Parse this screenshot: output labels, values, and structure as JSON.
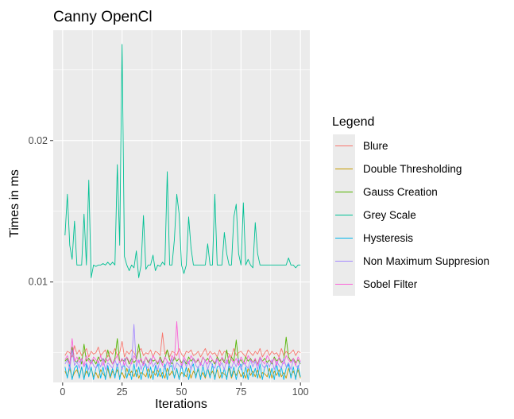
{
  "chart_data": {
    "type": "line",
    "title": "Canny OpenCl",
    "xlabel": "Iterations",
    "ylabel": "Times in ms",
    "xlim": [
      -3.95,
      103.95
    ],
    "ylim": [
      0.0029,
      0.0278
    ],
    "x_ticks": [
      0,
      25,
      50,
      75,
      100
    ],
    "y_ticks": [
      0.01,
      0.02
    ],
    "y_tick_labels": [
      "0.01",
      "0.02"
    ],
    "grid": true,
    "legend": {
      "title": "Legend",
      "position": "right"
    },
    "series": [
      {
        "name": "Blure",
        "color": "#F8766D",
        "values": [
          0.0048,
          0.0051,
          0.005,
          0.0047,
          0.0055,
          0.0049,
          0.0052,
          0.0048,
          0.005,
          0.0053,
          0.0047,
          0.0051,
          0.0049,
          0.005,
          0.0054,
          0.0048,
          0.005,
          0.0052,
          0.0047,
          0.0051,
          0.0049,
          0.0053,
          0.0048,
          0.005,
          0.0058,
          0.0047,
          0.0051,
          0.0049,
          0.0052,
          0.005,
          0.0047,
          0.0051,
          0.0053,
          0.0048,
          0.005,
          0.0049,
          0.0052,
          0.0047,
          0.0051,
          0.005,
          0.0048,
          0.0064,
          0.0049,
          0.0052,
          0.0047,
          0.0051,
          0.005,
          0.0048,
          0.0053,
          0.0049,
          0.0047,
          0.0051,
          0.005,
          0.0052,
          0.0048,
          0.0049,
          0.0051,
          0.0047,
          0.005,
          0.0053,
          0.0048,
          0.0051,
          0.0049,
          0.005,
          0.0047,
          0.0052,
          0.0048,
          0.0051,
          0.005,
          0.0049,
          0.0047,
          0.0053,
          0.0048,
          0.005,
          0.0051,
          0.0049,
          0.0047,
          0.0052,
          0.005,
          0.0048,
          0.0051,
          0.0049,
          0.0053,
          0.0047,
          0.005,
          0.0052,
          0.0048,
          0.0051,
          0.0049,
          0.005,
          0.0047,
          0.0053,
          0.0048,
          0.0051,
          0.0049,
          0.005,
          0.0052,
          0.0048,
          0.0051,
          0.005
        ]
      },
      {
        "name": "Double Thresholding",
        "color": "#C49A00",
        "values": [
          0.0037,
          0.0033,
          0.0039,
          0.0032,
          0.0036,
          0.0038,
          0.0033,
          0.004,
          0.0032,
          0.0037,
          0.0034,
          0.0039,
          0.0033,
          0.0036,
          0.0032,
          0.0038,
          0.0035,
          0.0033,
          0.0039,
          0.0032,
          0.0037,
          0.0034,
          0.0038,
          0.0033,
          0.0036,
          0.0032,
          0.0039,
          0.0034,
          0.0037,
          0.0033,
          0.0038,
          0.0032,
          0.0036,
          0.0035,
          0.0033,
          0.0039,
          0.0032,
          0.0037,
          0.0034,
          0.0038,
          0.0033,
          0.0036,
          0.0032,
          0.0039,
          0.0034,
          0.0037,
          0.0033,
          0.0038,
          0.0032,
          0.0036,
          0.0035,
          0.0033,
          0.0039,
          0.0032,
          0.0037,
          0.0034,
          0.0038,
          0.0033,
          0.0036,
          0.0032,
          0.0039,
          0.0034,
          0.0037,
          0.0033,
          0.0038,
          0.0032,
          0.0036,
          0.0035,
          0.0033,
          0.0039,
          0.0032,
          0.0037,
          0.0034,
          0.0038,
          0.0033,
          0.0036,
          0.0032,
          0.0039,
          0.0034,
          0.0037,
          0.0033,
          0.0038,
          0.0032,
          0.0036,
          0.0035,
          0.0033,
          0.0039,
          0.0032,
          0.0037,
          0.0034,
          0.0038,
          0.0033,
          0.0036,
          0.0032,
          0.0039,
          0.0034,
          0.0037,
          0.0033,
          0.0038,
          0.0032
        ]
      },
      {
        "name": "Gauss Creation",
        "color": "#53B400",
        "values": [
          0.0044,
          0.0046,
          0.0042,
          0.0054,
          0.0045,
          0.0043,
          0.0047,
          0.0042,
          0.0056,
          0.0044,
          0.0046,
          0.0043,
          0.0045,
          0.0042,
          0.0047,
          0.0044,
          0.0046,
          0.0043,
          0.0052,
          0.0045,
          0.0042,
          0.0046,
          0.006,
          0.0043,
          0.0045,
          0.0044,
          0.0047,
          0.0042,
          0.0046,
          0.0043,
          0.0045,
          0.0056,
          0.0044,
          0.0042,
          0.0047,
          0.0043,
          0.0046,
          0.0044,
          0.0045,
          0.0042,
          0.0047,
          0.0043,
          0.0046,
          0.0052,
          0.0045,
          0.0042,
          0.0047,
          0.0044,
          0.0046,
          0.0043,
          0.0045,
          0.0042,
          0.0047,
          0.0044,
          0.0046,
          0.0043,
          0.0045,
          0.0042,
          0.0047,
          0.0044,
          0.0046,
          0.0043,
          0.0045,
          0.0042,
          0.0047,
          0.0044,
          0.0046,
          0.0043,
          0.0052,
          0.0042,
          0.0047,
          0.0044,
          0.0059,
          0.0043,
          0.0045,
          0.0042,
          0.0047,
          0.0044,
          0.0046,
          0.0043,
          0.0045,
          0.0042,
          0.0047,
          0.0044,
          0.0046,
          0.0043,
          0.0045,
          0.0042,
          0.0047,
          0.0044,
          0.0046,
          0.0043,
          0.0045,
          0.0061,
          0.0047,
          0.0044,
          0.0046,
          0.0043,
          0.0045,
          0.0042
        ]
      },
      {
        "name": "Grey Scale",
        "color": "#00C094",
        "values": [
          0.0133,
          0.0162,
          0.0126,
          0.0116,
          0.0143,
          0.0112,
          0.0112,
          0.0112,
          0.0148,
          0.0112,
          0.0172,
          0.0103,
          0.0112,
          0.0111,
          0.0112,
          0.0112,
          0.0113,
          0.0112,
          0.0114,
          0.0112,
          0.0114,
          0.0112,
          0.0183,
          0.0126,
          0.0268,
          0.0118,
          0.0112,
          0.0108,
          0.0112,
          0.011,
          0.0122,
          0.0103,
          0.0112,
          0.0147,
          0.0109,
          0.0112,
          0.0112,
          0.0119,
          0.0108,
          0.0112,
          0.0111,
          0.0114,
          0.0112,
          0.0178,
          0.0112,
          0.0112,
          0.013,
          0.0162,
          0.0148,
          0.0112,
          0.0106,
          0.0112,
          0.0146,
          0.0124,
          0.0112,
          0.0112,
          0.0112,
          0.0112,
          0.0112,
          0.0112,
          0.0127,
          0.0112,
          0.0112,
          0.0162,
          0.0112,
          0.0112,
          0.0112,
          0.0135,
          0.012,
          0.0112,
          0.0112,
          0.0146,
          0.0155,
          0.012,
          0.0112,
          0.0156,
          0.0112,
          0.0116,
          0.0112,
          0.011,
          0.0142,
          0.012,
          0.0112,
          0.0112,
          0.0112,
          0.0112,
          0.0112,
          0.0112,
          0.0112,
          0.0112,
          0.0112,
          0.0112,
          0.0112,
          0.0112,
          0.0117,
          0.0112,
          0.0112,
          0.011,
          0.0112,
          0.0112
        ]
      },
      {
        "name": "Hysteresis",
        "color": "#00B6EB",
        "values": [
          0.004,
          0.0032,
          0.0042,
          0.0031,
          0.0039,
          0.0041,
          0.0032,
          0.004,
          0.0031,
          0.0042,
          0.0033,
          0.004,
          0.0031,
          0.0039,
          0.0042,
          0.0032,
          0.004,
          0.0031,
          0.0041,
          0.0033,
          0.0039,
          0.0032,
          0.0042,
          0.0031,
          0.004,
          0.0041,
          0.0032,
          0.0039,
          0.0031,
          0.0042,
          0.0033,
          0.004,
          0.0031,
          0.0039,
          0.0042,
          0.0032,
          0.004,
          0.0031,
          0.0041,
          0.0033,
          0.0039,
          0.0032,
          0.0042,
          0.0031,
          0.004,
          0.0041,
          0.0032,
          0.0039,
          0.0031,
          0.0042,
          0.0033,
          0.004,
          0.0031,
          0.0039,
          0.0042,
          0.0032,
          0.004,
          0.0031,
          0.0041,
          0.0033,
          0.0039,
          0.0032,
          0.0042,
          0.0031,
          0.004,
          0.0041,
          0.0032,
          0.0039,
          0.0031,
          0.0042,
          0.0033,
          0.004,
          0.0031,
          0.0039,
          0.0042,
          0.0032,
          0.004,
          0.0031,
          0.0041,
          0.0033,
          0.0039,
          0.0032,
          0.0042,
          0.0031,
          0.004,
          0.0041,
          0.0032,
          0.0039,
          0.0031,
          0.0042,
          0.0033,
          0.004,
          0.0031,
          0.0039,
          0.0042,
          0.0032,
          0.004,
          0.0031,
          0.0041,
          0.0033
        ]
      },
      {
        "name": "Non Maximum Suppresion",
        "color": "#A58AFF",
        "values": [
          0.0042,
          0.0045,
          0.0038,
          0.0052,
          0.0041,
          0.0044,
          0.0039,
          0.0046,
          0.004,
          0.0043,
          0.0038,
          0.0045,
          0.0041,
          0.0039,
          0.0044,
          0.004,
          0.0046,
          0.0038,
          0.0043,
          0.0041,
          0.0039,
          0.0045,
          0.004,
          0.0044,
          0.0038,
          0.0046,
          0.0041,
          0.0039,
          0.0043,
          0.007,
          0.004,
          0.0045,
          0.0038,
          0.0044,
          0.0041,
          0.0039,
          0.0046,
          0.004,
          0.0043,
          0.0038,
          0.0045,
          0.0041,
          0.0039,
          0.0044,
          0.004,
          0.0046,
          0.0038,
          0.0043,
          0.0041,
          0.0039,
          0.0045,
          0.004,
          0.0044,
          0.0038,
          0.0046,
          0.0041,
          0.0039,
          0.0043,
          0.004,
          0.0045,
          0.0038,
          0.0044,
          0.0041,
          0.0039,
          0.0046,
          0.004,
          0.0043,
          0.0038,
          0.0045,
          0.0041,
          0.0039,
          0.0044,
          0.004,
          0.0046,
          0.0038,
          0.0043,
          0.0041,
          0.0039,
          0.0045,
          0.004,
          0.0044,
          0.0038,
          0.0046,
          0.0041,
          0.0039,
          0.0043,
          0.004,
          0.0045,
          0.0038,
          0.0044,
          0.0041,
          0.0039,
          0.0046,
          0.004,
          0.0043,
          0.0038,
          0.0045,
          0.0041,
          0.0039,
          0.0044
        ]
      },
      {
        "name": "Sobel Filter",
        "color": "#FB61D7",
        "values": [
          0.0045,
          0.0048,
          0.0042,
          0.006,
          0.0044,
          0.0047,
          0.0043,
          0.0046,
          0.0041,
          0.0048,
          0.0044,
          0.0042,
          0.0047,
          0.0045,
          0.0043,
          0.0048,
          0.0041,
          0.0046,
          0.0044,
          0.0047,
          0.0042,
          0.0045,
          0.0048,
          0.0043,
          0.0046,
          0.0041,
          0.0047,
          0.0044,
          0.0042,
          0.0048,
          0.0045,
          0.0043,
          0.0046,
          0.0041,
          0.0047,
          0.0044,
          0.0042,
          0.0048,
          0.0045,
          0.0043,
          0.0046,
          0.0041,
          0.0047,
          0.0044,
          0.0042,
          0.0048,
          0.0045,
          0.0072,
          0.0046,
          0.0041,
          0.0047,
          0.0044,
          0.0042,
          0.0048,
          0.0045,
          0.0043,
          0.0046,
          0.0041,
          0.0047,
          0.0044,
          0.0042,
          0.0048,
          0.0045,
          0.0043,
          0.0046,
          0.0041,
          0.0047,
          0.0044,
          0.0042,
          0.0048,
          0.0045,
          0.0043,
          0.0046,
          0.0041,
          0.0047,
          0.0044,
          0.0042,
          0.0048,
          0.0045,
          0.0043,
          0.0046,
          0.0041,
          0.0047,
          0.0044,
          0.0042,
          0.0048,
          0.0045,
          0.0043,
          0.0046,
          0.0041,
          0.0047,
          0.0044,
          0.0042,
          0.0048,
          0.0045,
          0.0043,
          0.0046,
          0.0041,
          0.0047,
          0.0044
        ]
      }
    ]
  }
}
